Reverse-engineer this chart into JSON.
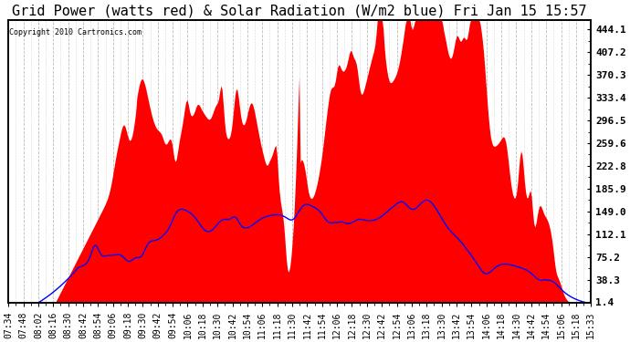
{
  "title": "Grid Power (watts red) & Solar Radiation (W/m2 blue) Fri Jan 15 15:57",
  "copyright_text": "Copyright 2010 Cartronics.com",
  "y_right_ticks": [
    1.4,
    38.3,
    75.2,
    112.1,
    149.0,
    185.9,
    222.8,
    259.6,
    296.5,
    333.4,
    370.3,
    407.2,
    444.1
  ],
  "ylim": [
    0,
    460
  ],
  "x_tick_labels": [
    "07:34",
    "07:48",
    "08:02",
    "08:16",
    "08:30",
    "08:42",
    "08:54",
    "09:06",
    "09:18",
    "09:30",
    "09:42",
    "09:54",
    "10:06",
    "10:18",
    "10:30",
    "10:42",
    "10:54",
    "11:06",
    "11:18",
    "11:30",
    "11:42",
    "11:54",
    "12:06",
    "12:18",
    "12:30",
    "12:42",
    "12:54",
    "13:06",
    "13:18",
    "13:30",
    "13:42",
    "13:54",
    "14:06",
    "14:18",
    "14:30",
    "14:42",
    "14:54",
    "15:06",
    "15:18",
    "15:33"
  ],
  "bg_color": "#ffffff",
  "grid_color": "#bbbbbb",
  "fill_color": "#ff0000",
  "line_color": "#0000ff",
  "title_fontsize": 11,
  "tick_fontsize": 7
}
